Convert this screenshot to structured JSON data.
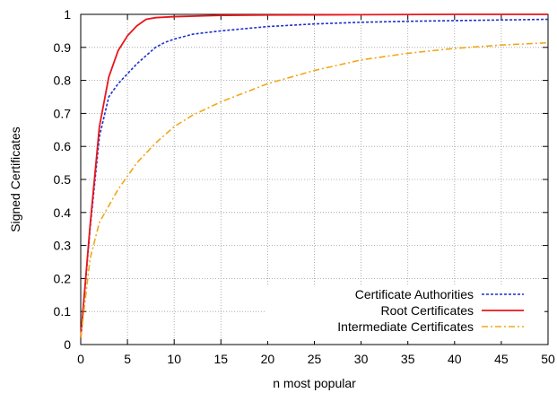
{
  "chart_data": {
    "type": "line",
    "xlabel": "n most popular",
    "ylabel": "Signed Certificates",
    "xlim": [
      0,
      50
    ],
    "ylim": [
      0,
      1
    ],
    "xticks": [
      "0",
      "5",
      "10",
      "15",
      "20",
      "25",
      "30",
      "35",
      "40",
      "45",
      "50"
    ],
    "yticks": [
      "0",
      "0.1",
      "0.2",
      "0.3",
      "0.4",
      "0.5",
      "0.6",
      "0.7",
      "0.8",
      "0.9",
      "1"
    ],
    "grid": true,
    "legend_position": "bottom-right",
    "series": [
      {
        "name": "Certificate Authorities",
        "color": "#1f2fd0",
        "dash": "dotted",
        "points": [
          [
            0,
            0.02
          ],
          [
            1,
            0.35
          ],
          [
            2,
            0.63
          ],
          [
            3,
            0.75
          ],
          [
            4,
            0.79
          ],
          [
            5,
            0.82
          ],
          [
            6,
            0.85
          ],
          [
            7,
            0.875
          ],
          [
            8,
            0.9
          ],
          [
            9,
            0.915
          ],
          [
            10,
            0.925
          ],
          [
            12,
            0.94
          ],
          [
            15,
            0.95
          ],
          [
            20,
            0.963
          ],
          [
            25,
            0.971
          ],
          [
            30,
            0.976
          ],
          [
            35,
            0.979
          ],
          [
            40,
            0.981
          ],
          [
            45,
            0.983
          ],
          [
            50,
            0.985
          ]
        ]
      },
      {
        "name": "Root Certificates",
        "color": "#e8161b",
        "dash": "solid",
        "points": [
          [
            0,
            0.02
          ],
          [
            1,
            0.36
          ],
          [
            2,
            0.66
          ],
          [
            3,
            0.81
          ],
          [
            4,
            0.89
          ],
          [
            5,
            0.935
          ],
          [
            6,
            0.965
          ],
          [
            7,
            0.985
          ],
          [
            8,
            0.99
          ],
          [
            10,
            0.993
          ],
          [
            15,
            0.997
          ],
          [
            20,
            0.998
          ],
          [
            30,
            0.999
          ],
          [
            40,
            1.0
          ],
          [
            50,
            1.0
          ]
        ]
      },
      {
        "name": "Intermediate Certificates",
        "color": "#f0a818",
        "dash": "dashdot",
        "points": [
          [
            0,
            0.02
          ],
          [
            1,
            0.26
          ],
          [
            2,
            0.37
          ],
          [
            3,
            0.42
          ],
          [
            4,
            0.47
          ],
          [
            5,
            0.51
          ],
          [
            6,
            0.55
          ],
          [
            8,
            0.61
          ],
          [
            10,
            0.66
          ],
          [
            12,
            0.695
          ],
          [
            15,
            0.735
          ],
          [
            20,
            0.79
          ],
          [
            25,
            0.83
          ],
          [
            30,
            0.862
          ],
          [
            35,
            0.882
          ],
          [
            40,
            0.897
          ],
          [
            45,
            0.907
          ],
          [
            50,
            0.914
          ]
        ]
      }
    ]
  }
}
